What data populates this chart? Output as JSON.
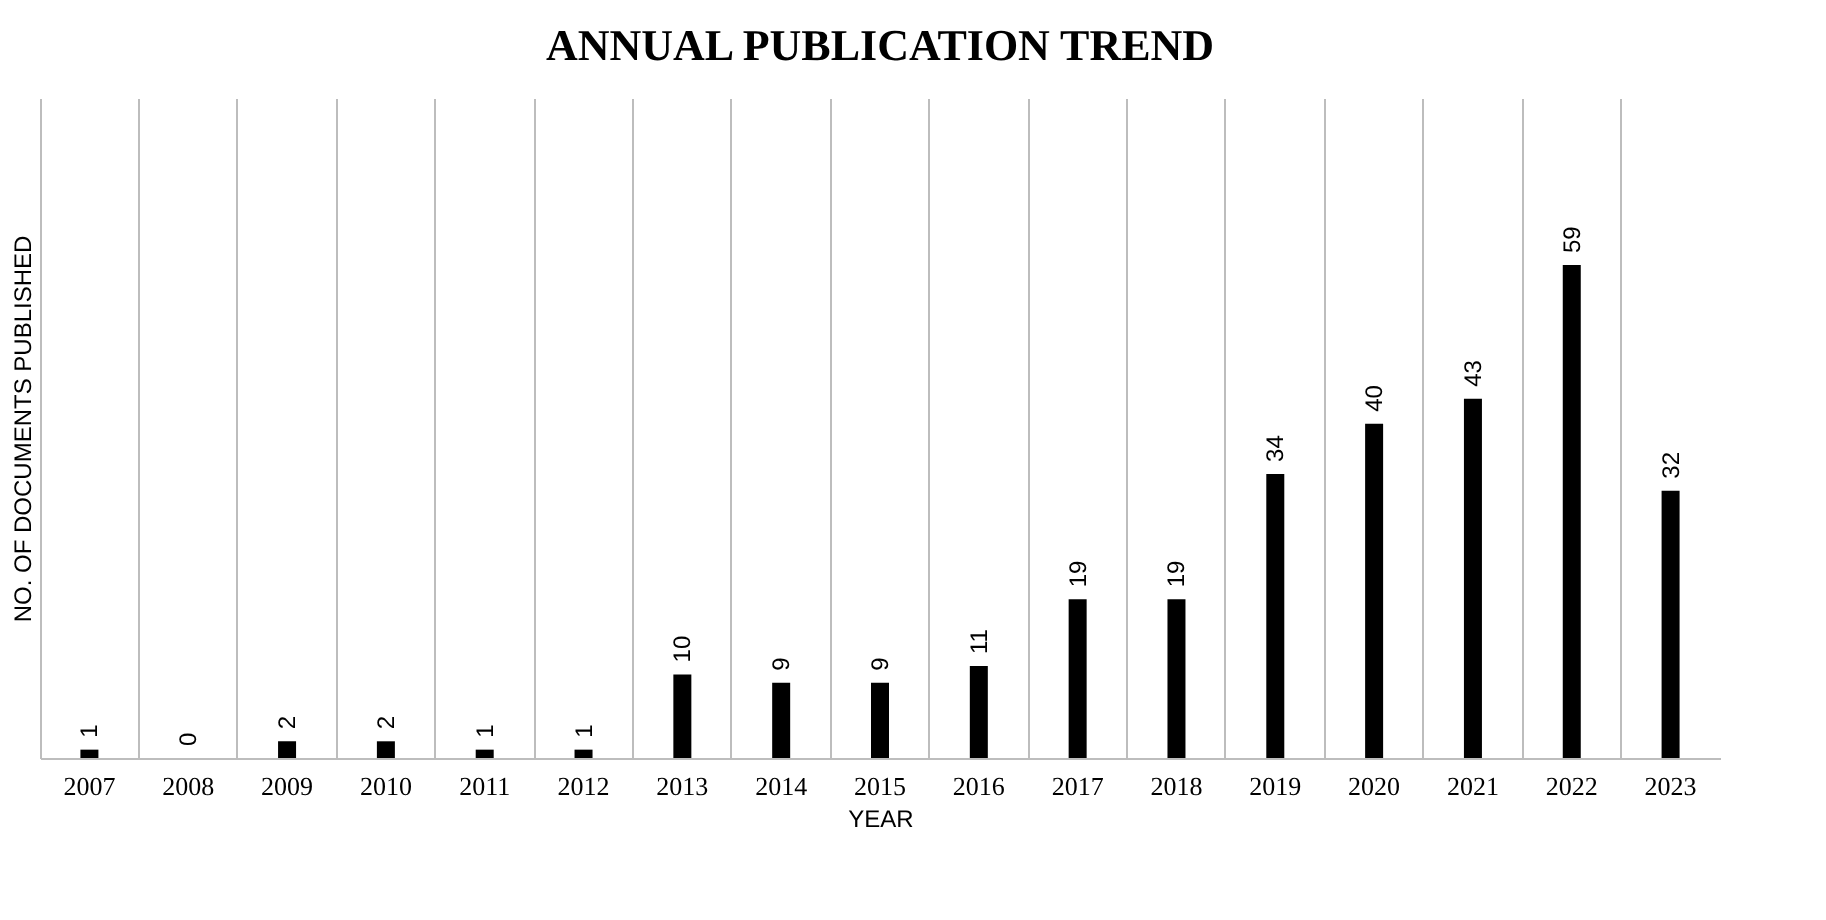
{
  "chart_data": {
    "type": "bar",
    "title": "ANNUAL PUBLICATION TREND",
    "xlabel": "YEAR",
    "ylabel": "NO. OF DOCUMENTS PUBLISHED",
    "categories": [
      "2007",
      "2008",
      "2009",
      "2010",
      "2011",
      "2012",
      "2013",
      "2014",
      "2015",
      "2016",
      "2017",
      "2018",
      "2019",
      "2020",
      "2021",
      "2022",
      "2023"
    ],
    "values": [
      1,
      0,
      2,
      2,
      1,
      1,
      10,
      9,
      9,
      11,
      19,
      19,
      34,
      40,
      43,
      59,
      32
    ],
    "color": "#000000",
    "ylim": [
      0,
      79
    ],
    "data_labels": true,
    "grid": "x",
    "tick_labels": "x"
  }
}
